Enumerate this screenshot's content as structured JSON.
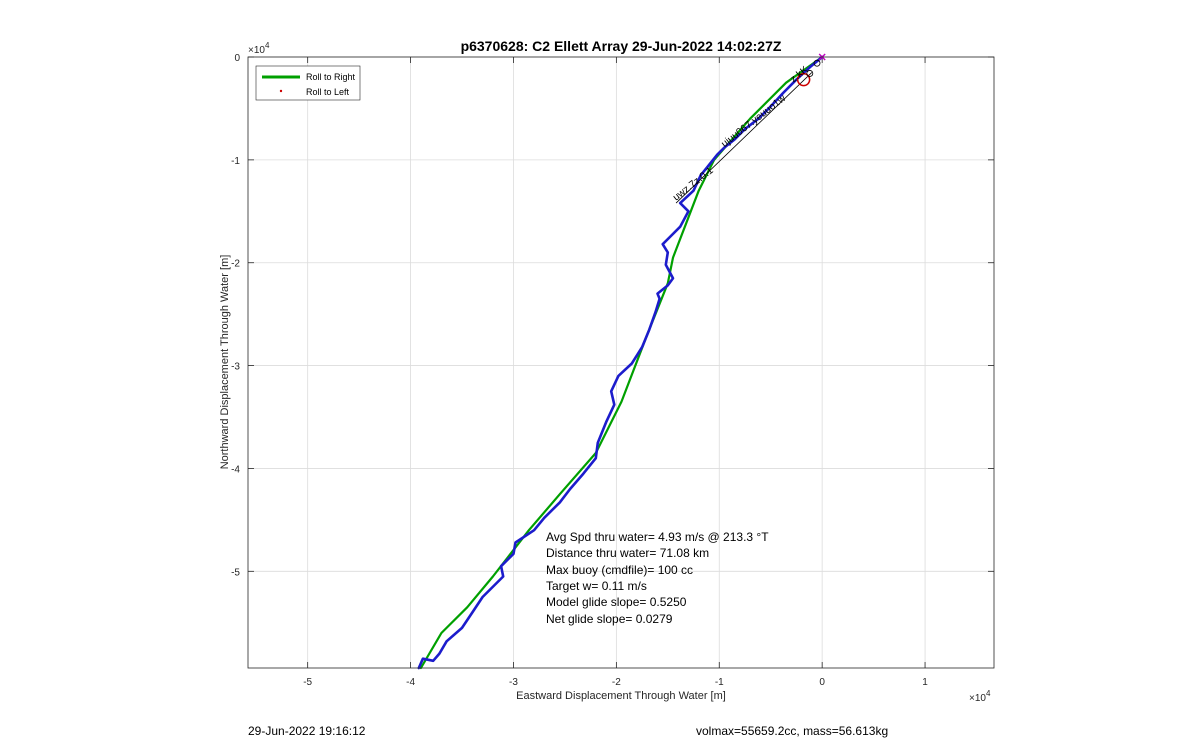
{
  "chart_data": {
    "type": "line",
    "title": "p6370628: C2 Ellett Array 29-Jun-2022 14:02:27Z",
    "xlabel": "Eastward Displacement Through Water [m]",
    "ylabel": "Northward Displacement Through Water [m]",
    "x_exponent_label": "×10",
    "x_exponent_power": "4",
    "y_exponent_label": "×10",
    "y_exponent_power": "4",
    "xlim": [
      -5.58,
      1.67
    ],
    "ylim": [
      -5.94,
      0
    ],
    "x_scale": 10000,
    "y_scale": 10000,
    "xticks": [
      -5,
      -4,
      -3,
      -2,
      -1,
      0,
      1
    ],
    "xtick_labels": [
      "-5",
      "-4",
      "-3",
      "-2",
      "-1",
      "0",
      "1"
    ],
    "yticks": [
      0,
      -1,
      -2,
      -3,
      -4,
      -5
    ],
    "ytick_labels": [
      "0",
      "-1",
      "-2",
      "-3",
      "-4",
      "-5"
    ],
    "grid": true,
    "legend": {
      "placement": "top-left",
      "entries": [
        {
          "label": "Roll to Right",
          "color": "#00a000",
          "style": "line"
        },
        {
          "label": "Roll to Left",
          "color": "#cc0000",
          "style": "dot"
        }
      ]
    },
    "series": [
      {
        "name": "Roll to Right",
        "color": "#00a000",
        "points": [
          [
            -3.9,
            -5.94
          ],
          [
            -3.7,
            -5.6
          ],
          [
            -3.45,
            -5.35
          ],
          [
            -3.2,
            -5.05
          ],
          [
            -2.85,
            -4.6
          ],
          [
            -2.55,
            -4.25
          ],
          [
            -2.2,
            -3.85
          ],
          [
            -1.95,
            -3.35
          ],
          [
            -1.7,
            -2.7
          ],
          [
            -1.5,
            -2.2
          ],
          [
            -1.45,
            -1.95
          ],
          [
            -1.2,
            -1.3
          ],
          [
            -1.05,
            -1.0
          ],
          [
            -0.7,
            -0.6
          ],
          [
            -0.35,
            -0.25
          ],
          [
            0,
            0
          ]
        ]
      },
      {
        "name": "",
        "color": "#1c1ccc",
        "points": [
          [
            -3.92,
            -5.94
          ],
          [
            -3.88,
            -5.85
          ],
          [
            -3.78,
            -5.87
          ],
          [
            -3.72,
            -5.8
          ],
          [
            -3.65,
            -5.68
          ],
          [
            -3.5,
            -5.55
          ],
          [
            -3.4,
            -5.4
          ],
          [
            -3.3,
            -5.25
          ],
          [
            -3.1,
            -5.05
          ],
          [
            -3.12,
            -4.95
          ],
          [
            -3.0,
            -4.83
          ],
          [
            -2.98,
            -4.72
          ],
          [
            -2.8,
            -4.6
          ],
          [
            -2.7,
            -4.48
          ],
          [
            -2.55,
            -4.33
          ],
          [
            -2.45,
            -4.2
          ],
          [
            -2.32,
            -4.05
          ],
          [
            -2.2,
            -3.9
          ],
          [
            -2.18,
            -3.75
          ],
          [
            -2.1,
            -3.55
          ],
          [
            -2.02,
            -3.38
          ],
          [
            -2.05,
            -3.25
          ],
          [
            -1.98,
            -3.1
          ],
          [
            -1.85,
            -2.98
          ],
          [
            -1.75,
            -2.82
          ],
          [
            -1.68,
            -2.65
          ],
          [
            -1.62,
            -2.48
          ],
          [
            -1.58,
            -2.35
          ],
          [
            -1.6,
            -2.3
          ],
          [
            -1.5,
            -2.22
          ],
          [
            -1.45,
            -2.15
          ],
          [
            -1.52,
            -2.02
          ],
          [
            -1.5,
            -1.9
          ],
          [
            -1.55,
            -1.82
          ],
          [
            -1.48,
            -1.75
          ],
          [
            -1.38,
            -1.65
          ],
          [
            -1.3,
            -1.5
          ],
          [
            -1.38,
            -1.42
          ],
          [
            -1.25,
            -1.3
          ],
          [
            -1.18,
            -1.15
          ],
          [
            -1.1,
            -1.05
          ],
          [
            -1.02,
            -0.95
          ],
          [
            -0.95,
            -0.88
          ],
          [
            -0.85,
            -0.8
          ],
          [
            -0.75,
            -0.7
          ],
          [
            -0.62,
            -0.6
          ],
          [
            -0.5,
            -0.48
          ],
          [
            -0.38,
            -0.35
          ],
          [
            -0.25,
            -0.22
          ],
          [
            -0.12,
            -0.1
          ],
          [
            0,
            0
          ]
        ]
      }
    ],
    "waypoints": {
      "labels": [
        "uwz.7z.0.1",
        "ujuu067.yeuuo1w",
        "z.kK"
      ],
      "circle_color": "#cc0000",
      "end_marker_color": "#c000c0"
    },
    "annotations": [
      "Avg Spd thru water=  4.93 m/s @ 213.3 °T",
      "Distance thru water= 71.08 km",
      "Max buoy (cmdfile)= 100 cc",
      "Target w= 0.11 m/s",
      "Model glide slope= 0.5250",
      "Net glide slope= 0.0279"
    ]
  },
  "footer": {
    "left": "29-Jun-2022 19:16:12",
    "right": "volmax=55659.2cc, mass=56.613kg"
  }
}
